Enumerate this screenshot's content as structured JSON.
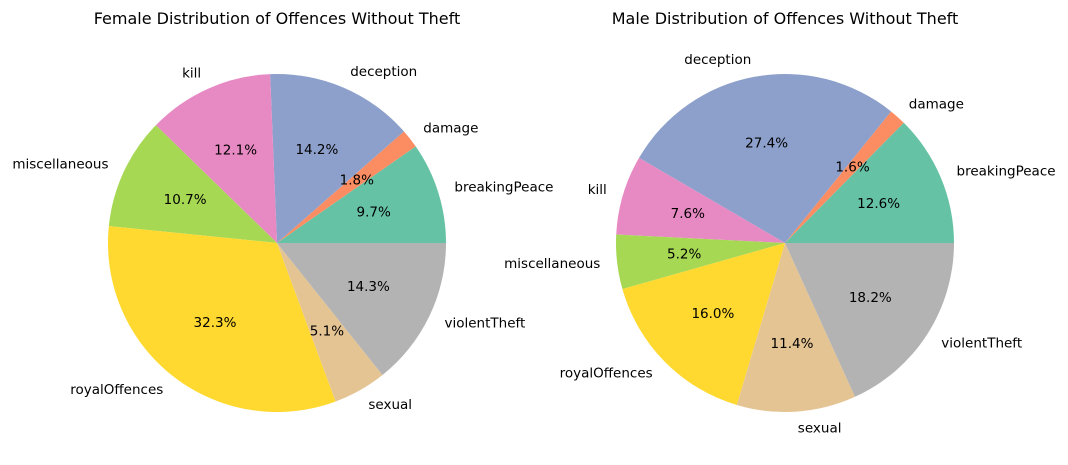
{
  "colors": {
    "breakingPeace": "#66c2a5",
    "damage": "#fc8d62",
    "deception": "#8da0cb",
    "kill": "#e78ac3",
    "miscellaneous": "#a6d854",
    "royalOffences": "#ffd92f",
    "sexual": "#e5c494",
    "violentTheft": "#b3b3b3"
  },
  "chart_data": [
    {
      "type": "pie",
      "title": "Female Distribution of Offences Without Theft",
      "start_angle": 0,
      "direction": "counterclockwise",
      "categories": [
        "breakingPeace",
        "damage",
        "deception",
        "kill",
        "miscellaneous",
        "royalOffences",
        "sexual",
        "violentTheft"
      ],
      "values": [
        9.7,
        1.8,
        14.2,
        12.1,
        10.7,
        32.3,
        5.1,
        14.3
      ],
      "pct_labels": [
        "9.7%",
        "1.8%",
        "14.2%",
        "12.1%",
        "10.7%",
        "32.3%",
        "5.1%",
        "14.3%"
      ]
    },
    {
      "type": "pie",
      "title": "Male Distribution of Offences Without Theft",
      "start_angle": 0,
      "direction": "counterclockwise",
      "categories": [
        "breakingPeace",
        "damage",
        "deception",
        "kill",
        "miscellaneous",
        "royalOffences",
        "sexual",
        "violentTheft"
      ],
      "values": [
        12.6,
        1.6,
        27.4,
        7.6,
        5.2,
        16.0,
        11.4,
        18.2
      ],
      "pct_labels": [
        "12.6%",
        "1.6%",
        "27.4%",
        "7.6%",
        "5.2%",
        "16.0%",
        "11.4%",
        "18.2%"
      ]
    }
  ]
}
